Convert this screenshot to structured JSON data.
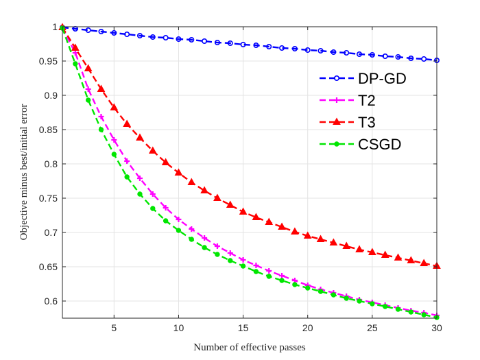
{
  "chart_data": {
    "type": "line",
    "xlabel": "Number of effective passes",
    "ylabel": "Objective minus best/initial error",
    "xlim": [
      1,
      30
    ],
    "ylim": [
      0.575,
      1.0
    ],
    "xticks": [
      5,
      10,
      15,
      20,
      25,
      30
    ],
    "yticks": [
      0.6,
      0.65,
      0.7,
      0.75,
      0.8,
      0.85,
      0.9,
      0.95,
      1
    ],
    "ytick_labels": [
      "0.6",
      "0.65",
      "0.7",
      "0.75",
      "0.8",
      "0.85",
      "0.9",
      "0.95",
      "1"
    ],
    "grid": true,
    "legend_position": "top-right",
    "x": [
      1,
      2,
      3,
      4,
      5,
      6,
      7,
      8,
      9,
      10,
      11,
      12,
      13,
      14,
      15,
      16,
      17,
      18,
      19,
      20,
      21,
      22,
      23,
      24,
      25,
      26,
      27,
      28,
      29,
      30
    ],
    "series": [
      {
        "name": "DP-GD",
        "color": "#0000ff",
        "marker": "circle",
        "values": [
          0.999,
          0.997,
          0.995,
          0.993,
          0.991,
          0.989,
          0.987,
          0.985,
          0.984,
          0.982,
          0.981,
          0.979,
          0.977,
          0.976,
          0.974,
          0.973,
          0.971,
          0.969,
          0.968,
          0.966,
          0.965,
          0.963,
          0.962,
          0.96,
          0.959,
          0.957,
          0.956,
          0.954,
          0.953,
          0.951
        ]
      },
      {
        "name": "T2",
        "color": "#ff00ff",
        "marker": "plus",
        "values": [
          0.998,
          0.962,
          0.909,
          0.869,
          0.835,
          0.804,
          0.779,
          0.756,
          0.736,
          0.719,
          0.705,
          0.692,
          0.68,
          0.67,
          0.66,
          0.652,
          0.644,
          0.637,
          0.63,
          0.623,
          0.617,
          0.612,
          0.607,
          0.602,
          0.598,
          0.594,
          0.59,
          0.586,
          0.583,
          0.579
        ]
      },
      {
        "name": "T3",
        "color": "#ff0000",
        "marker": "triangle",
        "values": [
          0.999,
          0.969,
          0.939,
          0.909,
          0.882,
          0.858,
          0.838,
          0.819,
          0.802,
          0.787,
          0.773,
          0.761,
          0.75,
          0.74,
          0.73,
          0.722,
          0.715,
          0.708,
          0.701,
          0.695,
          0.69,
          0.685,
          0.68,
          0.675,
          0.671,
          0.667,
          0.663,
          0.659,
          0.655,
          0.651
        ]
      },
      {
        "name": "CSGD",
        "color": "#00e600",
        "marker": "dot",
        "values": [
          0.998,
          0.946,
          0.893,
          0.85,
          0.814,
          0.781,
          0.756,
          0.735,
          0.717,
          0.703,
          0.69,
          0.678,
          0.668,
          0.659,
          0.651,
          0.643,
          0.636,
          0.63,
          0.624,
          0.619,
          0.614,
          0.609,
          0.604,
          0.6,
          0.596,
          0.592,
          0.588,
          0.584,
          0.58,
          0.576
        ]
      }
    ]
  }
}
